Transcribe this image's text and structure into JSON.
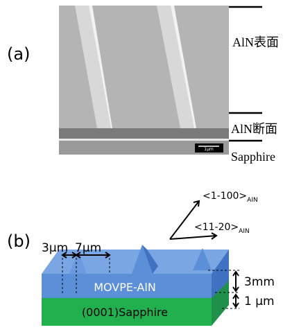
{
  "panel_a": {
    "label": "(a)",
    "scale_bar": "1μm",
    "layers": [
      "AlN表面",
      "AlN断面",
      "Sapphire"
    ]
  },
  "panel_b": {
    "label": "(b)",
    "widths": [
      "3μm",
      "7μm"
    ],
    "directions": [
      {
        "text": "<1-100>",
        "sub": "AIN"
      },
      {
        "text": "<11-20>",
        "sub": "AIN"
      }
    ],
    "thicknesses": [
      "3mm",
      "1 μm"
    ],
    "layers": [
      "MOVPE-AlN",
      "(0001)Sapphire"
    ]
  }
}
